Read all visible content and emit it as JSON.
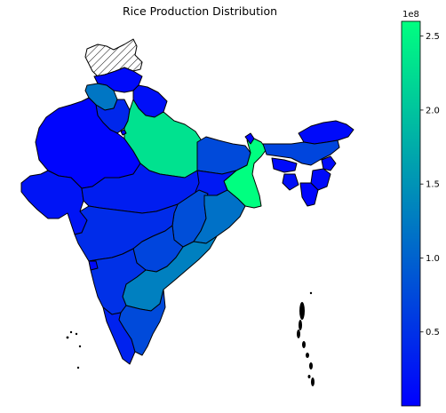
{
  "chart_data": {
    "type": "choropleth",
    "title": "Rice Production Distribution",
    "colormap": [
      "#0000ff",
      "#00ff80"
    ],
    "missing_value_style": "hatched",
    "colorbar": {
      "multiplier": "1e8",
      "range": [
        0,
        2.6
      ],
      "ticks": [
        {
          "label": "0.5",
          "value": 0.5
        },
        {
          "label": "1.0",
          "value": 1.0
        },
        {
          "label": "1.5",
          "value": 1.5
        },
        {
          "label": "2.0",
          "value": 2.0
        },
        {
          "label": "2.5",
          "value": 2.5
        }
      ]
    },
    "regions": [
      {
        "name": "Jammu & Kashmir",
        "value": null
      },
      {
        "name": "Himachal Pradesh",
        "value": 0.1
      },
      {
        "name": "Punjab",
        "value": 1.2
      },
      {
        "name": "Uttarakhand",
        "value": 0.15
      },
      {
        "name": "Haryana",
        "value": 0.4
      },
      {
        "name": "Rajasthan",
        "value": 0.05
      },
      {
        "name": "Uttar Pradesh",
        "value": 2.3
      },
      {
        "name": "Bihar",
        "value": 0.75
      },
      {
        "name": "West Bengal",
        "value": 2.6
      },
      {
        "name": "Sikkim",
        "value": 0.05
      },
      {
        "name": "Arunachal Pradesh",
        "value": 0.1
      },
      {
        "name": "Assam",
        "value": 0.7
      },
      {
        "name": "Meghalaya",
        "value": 0.1
      },
      {
        "name": "Nagaland",
        "value": 0.1
      },
      {
        "name": "Manipur",
        "value": 0.1
      },
      {
        "name": "Mizoram",
        "value": 0.05
      },
      {
        "name": "Tripura",
        "value": 0.15
      },
      {
        "name": "Gujarat",
        "value": 0.2
      },
      {
        "name": "Madhya Pradesh",
        "value": 0.3
      },
      {
        "name": "Jharkhand",
        "value": 0.25
      },
      {
        "name": "Chhattisgarh",
        "value": 0.8
      },
      {
        "name": "Odisha",
        "value": 1.15
      },
      {
        "name": "Maharashtra",
        "value": 0.45
      },
      {
        "name": "Telangana",
        "value": 0.7
      },
      {
        "name": "Andhra Pradesh",
        "value": 1.3
      },
      {
        "name": "Karnataka",
        "value": 0.5
      },
      {
        "name": "Goa",
        "value": 0.1
      },
      {
        "name": "Kerala",
        "value": 0.35
      },
      {
        "name": "Tamil Nadu",
        "value": 0.75
      },
      {
        "name": "Delhi",
        "value": 0.05
      }
    ]
  }
}
